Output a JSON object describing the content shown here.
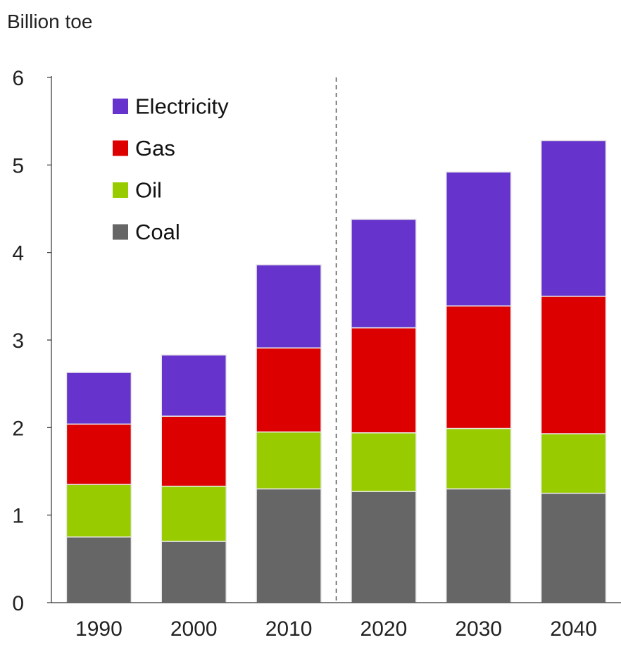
{
  "chart_data": {
    "type": "bar",
    "stacked": true,
    "ylabel": "Billion toe",
    "categories": [
      "1990",
      "2000",
      "2010",
      "2020",
      "2030",
      "2040"
    ],
    "series": [
      {
        "name": "Coal",
        "color": "#666666",
        "values": [
          0.75,
          0.7,
          1.3,
          1.27,
          1.3,
          1.25
        ]
      },
      {
        "name": "Oil",
        "color": "#99CC00",
        "values": [
          0.6,
          0.63,
          0.65,
          0.67,
          0.69,
          0.68
        ]
      },
      {
        "name": "Gas",
        "color": "#DD0000",
        "values": [
          0.69,
          0.8,
          0.96,
          1.2,
          1.4,
          1.57
        ]
      },
      {
        "name": "Electricity",
        "color": "#6633CC",
        "values": [
          0.59,
          0.7,
          0.95,
          1.24,
          1.53,
          1.78
        ]
      }
    ],
    "ylim": [
      0,
      6
    ],
    "yticks": [
      "0",
      "1",
      "2",
      "3",
      "4",
      "5",
      "6"
    ],
    "projection_divider": "between 2010 and 2020 (dashed line)",
    "grid": false,
    "legend": {
      "placement": "top-left",
      "order": [
        "Electricity",
        "Gas",
        "Oil",
        "Coal"
      ]
    }
  }
}
